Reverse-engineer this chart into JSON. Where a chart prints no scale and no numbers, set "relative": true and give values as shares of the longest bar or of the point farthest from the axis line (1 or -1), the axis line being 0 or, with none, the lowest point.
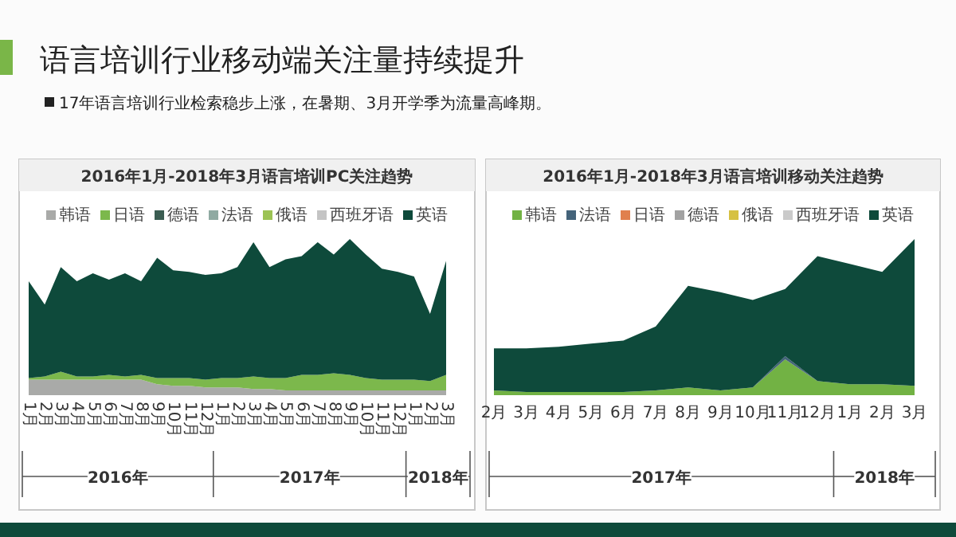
{
  "chart_data": [
    {
      "type": "other",
      "title": "语言培训行业移动端关注量持续提升",
      "subtitle": "17年语言培训行业检索稳步上涨，在暑期、3月开学季为流量高峰期。"
    },
    {
      "type": "area",
      "stacked": true,
      "relative": true,
      "legend": "top",
      "title": "2016年1月-2018年3月语言培训PC关注趋势",
      "categories": [
        "1月",
        "2月",
        "3月",
        "4月",
        "5月",
        "6月",
        "7月",
        "8月",
        "9月",
        "10月",
        "11月",
        "12月",
        "1月",
        "2月",
        "3月",
        "4月",
        "5月",
        "6月",
        "7月",
        "8月",
        "9月",
        "10月",
        "11月",
        "12月",
        "1月",
        "2月",
        "3月"
      ],
      "annotations": [
        "2016年",
        "2017年",
        "2018年"
      ],
      "series": [
        {
          "name": "韩语",
          "color": "#a9aaa8",
          "values": [
            0.1,
            0.1,
            0.1,
            0.1,
            0.1,
            0.1,
            0.1,
            0.1,
            0.07,
            0.06,
            0.06,
            0.05,
            0.05,
            0.05,
            0.04,
            0.04,
            0.03,
            0.03,
            0.03,
            0.03,
            0.03,
            0.03,
            0.03,
            0.03,
            0.03,
            0.03,
            0.03
          ]
        },
        {
          "name": "日语",
          "color": "#7cb84c",
          "values": [
            0.01,
            0.02,
            0.05,
            0.02,
            0.02,
            0.03,
            0.02,
            0.03,
            0.04,
            0.05,
            0.05,
            0.05,
            0.06,
            0.06,
            0.08,
            0.07,
            0.08,
            0.1,
            0.1,
            0.11,
            0.1,
            0.08,
            0.07,
            0.07,
            0.07,
            0.06,
            0.1
          ]
        },
        {
          "name": "德语",
          "color": "#3b5d52",
          "values": [
            null,
            null,
            null,
            null,
            null,
            null,
            null,
            null,
            null,
            null,
            null,
            null,
            null,
            null,
            null,
            null,
            null,
            null,
            null,
            null,
            null,
            null,
            null,
            null,
            null,
            null,
            null
          ]
        },
        {
          "name": "法语",
          "color": "#8faaa2",
          "values": [
            null,
            null,
            null,
            null,
            null,
            null,
            null,
            null,
            null,
            null,
            null,
            null,
            null,
            null,
            null,
            null,
            null,
            null,
            null,
            null,
            null,
            null,
            null,
            null,
            null,
            null,
            null
          ]
        },
        {
          "name": "俄语",
          "color": "#9cc354",
          "values": [
            null,
            null,
            null,
            null,
            null,
            null,
            null,
            null,
            null,
            null,
            null,
            null,
            null,
            null,
            null,
            null,
            null,
            null,
            null,
            null,
            null,
            null,
            null,
            null,
            null,
            null,
            null
          ]
        },
        {
          "name": "西班牙语",
          "color": "#c4c4c4",
          "values": [
            null,
            null,
            null,
            null,
            null,
            null,
            null,
            null,
            null,
            null,
            null,
            null,
            null,
            null,
            null,
            null,
            null,
            null,
            null,
            null,
            null,
            null,
            null,
            null,
            null,
            null,
            null
          ]
        },
        {
          "name": "英语",
          "color": "#0e4a3b",
          "values": [
            0.62,
            0.46,
            0.67,
            0.61,
            0.66,
            0.61,
            0.66,
            0.6,
            0.77,
            0.69,
            0.68,
            0.67,
            0.67,
            0.71,
            0.86,
            0.71,
            0.76,
            0.76,
            0.85,
            0.76,
            0.87,
            0.79,
            0.71,
            0.69,
            0.66,
            0.43,
            0.73
          ]
        }
      ]
    },
    {
      "type": "area",
      "stacked": true,
      "relative": true,
      "legend": "top",
      "title": "2016年1月-2018年3月语言培训移动关注趋势",
      "categories": [
        "2月",
        "3月",
        "4月",
        "5月",
        "6月",
        "7月",
        "8月",
        "9月",
        "10月",
        "11月",
        "12月",
        "1月",
        "2月",
        "3月"
      ],
      "annotations": [
        "2017年",
        "2018年"
      ],
      "series": [
        {
          "name": "韩语",
          "color": "#72b244",
          "values": [
            0.03,
            0.02,
            0.02,
            0.02,
            0.02,
            0.03,
            0.05,
            0.03,
            0.05,
            0.23,
            0.09,
            0.07,
            0.07,
            0.06
          ]
        },
        {
          "name": "法语",
          "color": "#44637a",
          "values": [
            0,
            0,
            0,
            0,
            0,
            0,
            0,
            0,
            0,
            0.02,
            0,
            0,
            0,
            0
          ]
        },
        {
          "name": "日语",
          "color": "#e0804e",
          "values": [
            null,
            null,
            null,
            null,
            null,
            null,
            null,
            null,
            null,
            null,
            null,
            null,
            null,
            null
          ]
        },
        {
          "name": "德语",
          "color": "#a2a2a2",
          "values": [
            null,
            null,
            null,
            null,
            null,
            null,
            null,
            null,
            null,
            null,
            null,
            null,
            null,
            null
          ]
        },
        {
          "name": "俄语",
          "color": "#d6c142",
          "values": [
            null,
            null,
            null,
            null,
            null,
            null,
            null,
            null,
            null,
            null,
            null,
            null,
            null,
            null
          ]
        },
        {
          "name": "西班牙语",
          "color": "#cacaca",
          "values": [
            null,
            null,
            null,
            null,
            null,
            null,
            null,
            null,
            null,
            null,
            null,
            null,
            null,
            null
          ]
        },
        {
          "name": "英语",
          "color": "#0e4a3b",
          "values": [
            0.27,
            0.28,
            0.29,
            0.31,
            0.33,
            0.41,
            0.65,
            0.63,
            0.56,
            0.43,
            0.8,
            0.77,
            0.72,
            0.94
          ]
        }
      ]
    }
  ]
}
